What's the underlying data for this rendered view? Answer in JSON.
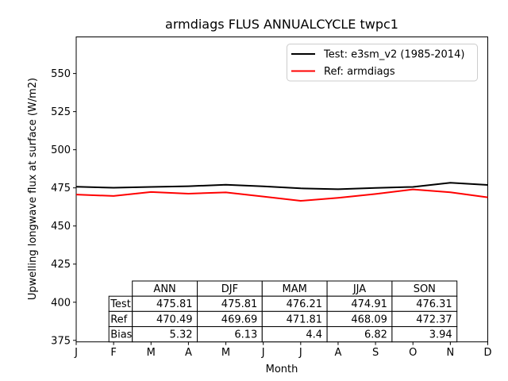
{
  "figure": {
    "background": "#ffffff"
  },
  "chart_data": {
    "type": "line",
    "title": "armdiags FLUS ANNUALCYCLE twpc1",
    "xlabel": "Month",
    "ylabel": "Upwelling longwave flux at surface (W/m2)",
    "x": [
      "J",
      "F",
      "M",
      "A",
      "M",
      "J",
      "J",
      "A",
      "S",
      "O",
      "N",
      "D"
    ],
    "y_ticks": [
      375,
      400,
      425,
      450,
      475,
      500,
      525,
      550
    ],
    "ylim": [
      374,
      574
    ],
    "grid": false,
    "legend_position": "upper right",
    "series": [
      {
        "name": "Test: e3sm_v2 (1985-2014)",
        "color": "#000000",
        "values": [
          475.7,
          475.1,
          475.6,
          476.1,
          477.0,
          476.0,
          474.7,
          474.1,
          475.0,
          475.6,
          478.3,
          476.9
        ]
      },
      {
        "name": "Ref: armdiags",
        "color": "#ff0000",
        "values": [
          470.6,
          469.7,
          472.3,
          471.2,
          472.0,
          469.3,
          466.5,
          468.5,
          471.0,
          474.0,
          472.1,
          468.8
        ]
      }
    ],
    "stats_table": {
      "col_headers": [
        "ANN",
        "DJF",
        "MAM",
        "JJA",
        "SON"
      ],
      "rows": [
        {
          "label": "Test",
          "values": [
            "475.81",
            "475.81",
            "476.21",
            "474.91",
            "476.31"
          ]
        },
        {
          "label": "Ref",
          "values": [
            "470.49",
            "469.69",
            "471.81",
            "468.09",
            "472.37"
          ]
        },
        {
          "label": "Bias",
          "values": [
            "5.32",
            "6.13",
            "4.4",
            "6.82",
            "3.94"
          ]
        }
      ]
    }
  }
}
